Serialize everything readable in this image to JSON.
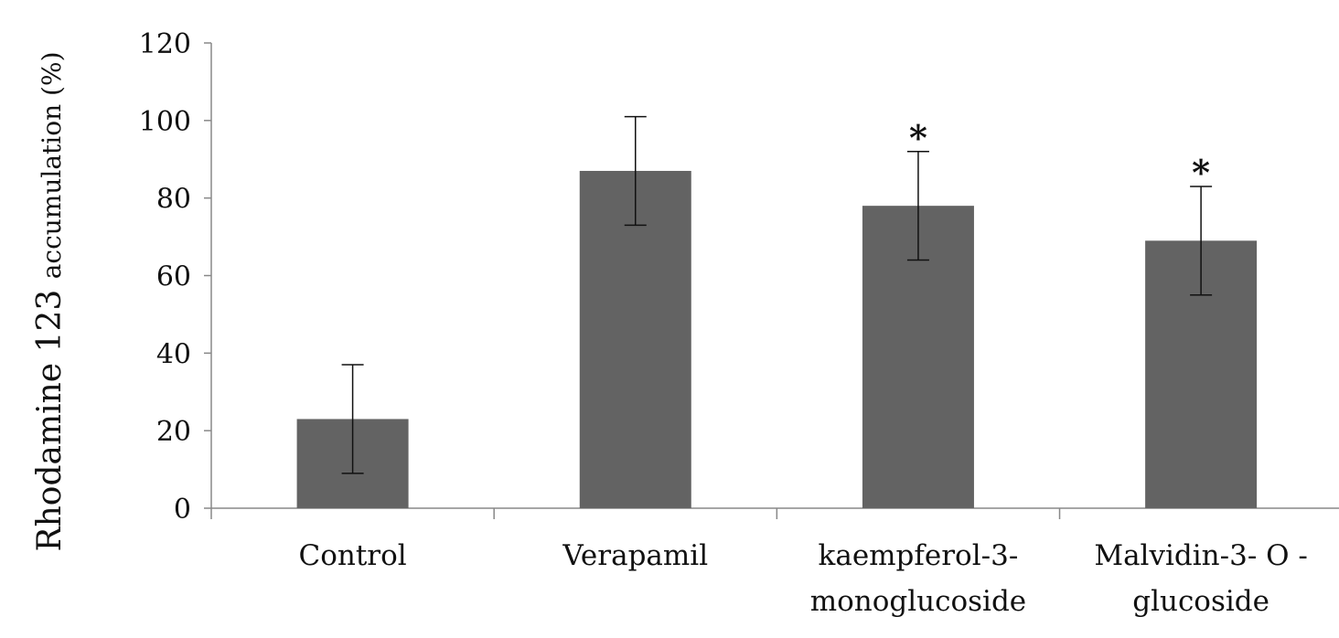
{
  "chart_data": {
    "type": "bar",
    "title": "",
    "xlabel": "",
    "ylabel": "Rhodamine 123 accumulation (%)",
    "ylabel_parts": [
      "Rhodamine 123 ",
      "accumulation (%)"
    ],
    "categories": [
      [
        "Control"
      ],
      [
        "Verapamil"
      ],
      [
        "kaempferol-3-",
        "monoglucoside"
      ],
      [
        "Malvidin-3- O -",
        "glucoside"
      ]
    ],
    "values": [
      23,
      87,
      78,
      69
    ],
    "errors": [
      14,
      14,
      14,
      14
    ],
    "significance": [
      "",
      "",
      "*",
      "*"
    ],
    "ylim": [
      0,
      120
    ],
    "yticks": [
      0,
      20,
      40,
      60,
      80,
      100,
      120
    ],
    "grid": false,
    "bar_color": "#636363"
  }
}
